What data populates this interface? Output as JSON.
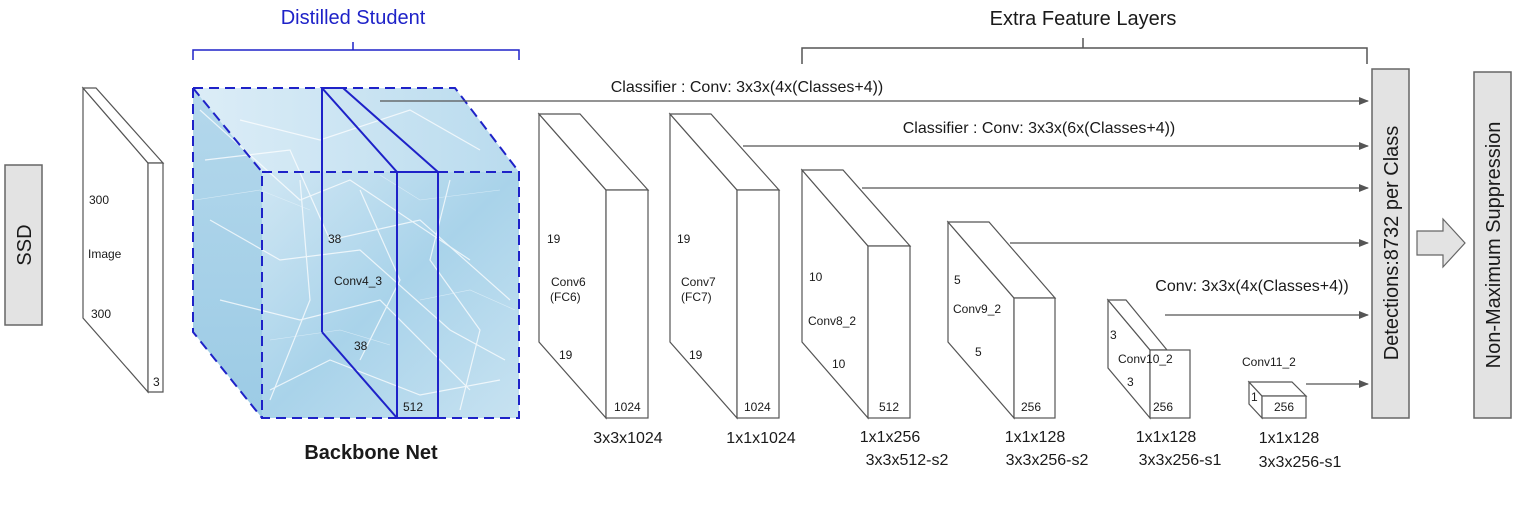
{
  "labels": {
    "ssd": "SSD",
    "distilled_student": "Distilled Student",
    "extra_feature_layers": "Extra Feature Layers",
    "backbone_net": "Backbone Net",
    "detections": "Detections:8732  per Class",
    "nms": "Non-Maximum Suppression",
    "classifier_1": "Classifier : Conv: 3x3x(4x(Classes+4))",
    "classifier_2": "Classifier : Conv: 3x3x(6x(Classes+4))",
    "classifier_3": "Conv: 3x3x(4x(Classes+4))"
  },
  "image_block": {
    "h": "300",
    "name": "Image",
    "w": "300",
    "c": "3"
  },
  "backbone": {
    "name": "Conv4_3",
    "h": "38",
    "w": "38",
    "c": "512"
  },
  "layers": [
    {
      "id": "conv6",
      "name": "Conv6",
      "sub": "(FC6)",
      "h": "19",
      "w": "19",
      "c": "1024",
      "spec1": "3x3x1024",
      "spec2": ""
    },
    {
      "id": "conv7",
      "name": "Conv7",
      "sub": "(FC7)",
      "h": "19",
      "w": "19",
      "c": "1024",
      "spec1": "1x1x1024",
      "spec2": ""
    },
    {
      "id": "conv8",
      "name": "Conv8_2",
      "sub": "",
      "h": "10",
      "w": "10",
      "c": "512",
      "spec1": "1x1x256",
      "spec2": "3x3x512-s2"
    },
    {
      "id": "conv9",
      "name": "Conv9_2",
      "sub": "",
      "h": "5",
      "w": "5",
      "c": "256",
      "spec1": "1x1x128",
      "spec2": "3x3x256-s2"
    },
    {
      "id": "conv10",
      "name": "Conv10_2",
      "sub": "",
      "h": "3",
      "w": "3",
      "c": "256",
      "spec1": "1x1x128",
      "spec2": "3x3x256-s1"
    },
    {
      "id": "conv11",
      "name": "Conv11_2",
      "sub": "",
      "h": "1",
      "w": "",
      "c": "256",
      "spec1": "1x1x128",
      "spec2": "3x3x256-s1"
    }
  ]
}
